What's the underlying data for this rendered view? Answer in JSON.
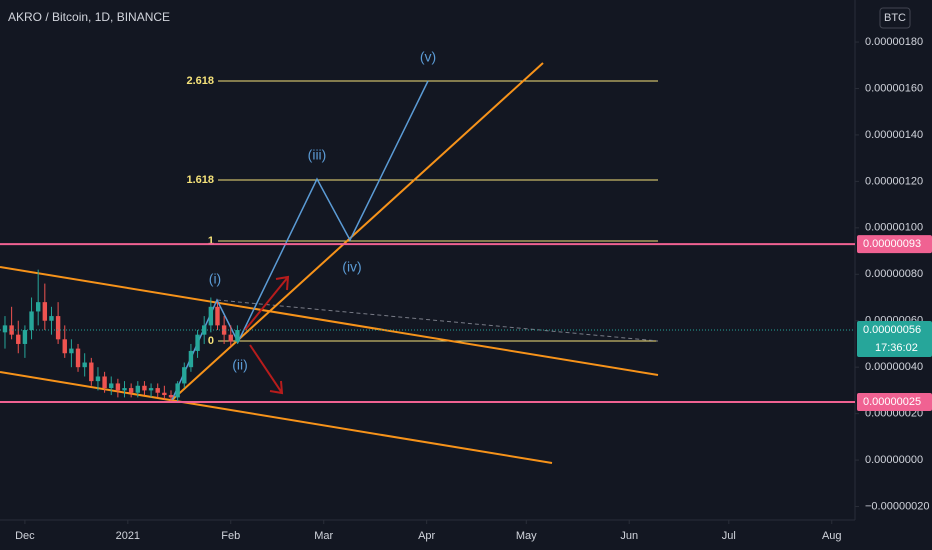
{
  "chart_data": {
    "type": "candlestick",
    "title": "AKRO / Bitcoin, 1D, BINANCE",
    "currency": "BTC",
    "x": [
      -6,
      -4,
      -2,
      0,
      2,
      4,
      6,
      8,
      10,
      12,
      14,
      16,
      18,
      20,
      22,
      24,
      26,
      28,
      30,
      32,
      34,
      36,
      38,
      40,
      42,
      44,
      46,
      48,
      50,
      52,
      54,
      56,
      58,
      60,
      62,
      64
    ],
    "open": [
      5.5e-07,
      5.8e-07,
      5.4e-07,
      5e-07,
      5.6e-07,
      6.4e-07,
      6.8e-07,
      6e-07,
      6.2e-07,
      5.2e-07,
      4.6e-07,
      4.8e-07,
      4e-07,
      4.2e-07,
      3.4e-07,
      3.6e-07,
      3.1e-07,
      3.3e-07,
      3e-07,
      3.1e-07,
      2.9e-07,
      3.2e-07,
      3e-07,
      3.1e-07,
      2.9e-07,
      2.8e-07,
      2.7e-07,
      3.3e-07,
      4e-07,
      4.7e-07,
      5.4e-07,
      5.8e-07,
      6.6e-07,
      5.8e-07,
      5.4e-07,
      5.1e-07
    ],
    "high": [
      6.2e-07,
      6.6e-07,
      6e-07,
      5.8e-07,
      7e-07,
      8.2e-07,
      7.6e-07,
      6.6e-07,
      6.8e-07,
      5.8e-07,
      5.2e-07,
      5e-07,
      4.6e-07,
      4.4e-07,
      4e-07,
      3.8e-07,
      3.6e-07,
      3.5e-07,
      3.4e-07,
      3.3e-07,
      3.4e-07,
      3.4e-07,
      3.3e-07,
      3.3e-07,
      3.2e-07,
      3e-07,
      3.4e-07,
      4.2e-07,
      5e-07,
      5.6e-07,
      6.2e-07,
      7e-07,
      6.8e-07,
      6.2e-07,
      5.8e-07,
      5.8e-07
    ],
    "low": [
      4.8e-07,
      5.2e-07,
      4.6e-07,
      4.4e-07,
      5.2e-07,
      5.8e-07,
      5.6e-07,
      5.4e-07,
      5e-07,
      4.4e-07,
      4e-07,
      3.8e-07,
      3.6e-07,
      3.2e-07,
      3e-07,
      2.9e-07,
      2.8e-07,
      2.7e-07,
      2.7e-07,
      2.7e-07,
      2.7e-07,
      2.8e-07,
      2.7e-07,
      2.7e-07,
      2.6e-07,
      2.5e-07,
      2.5e-07,
      3.1e-07,
      3.8e-07,
      4.4e-07,
      5e-07,
      5.5e-07,
      5.6e-07,
      5e-07,
      4.9e-07,
      5e-07
    ],
    "close": [
      5.8e-07,
      5.4e-07,
      5e-07,
      5.6e-07,
      6.4e-07,
      6.8e-07,
      6e-07,
      6.2e-07,
      5.2e-07,
      4.6e-07,
      4.8e-07,
      4e-07,
      4.2e-07,
      3.4e-07,
      3.6e-07,
      3.1e-07,
      3.3e-07,
      3e-07,
      3.1e-07,
      2.9e-07,
      3.2e-07,
      3e-07,
      3.1e-07,
      2.9e-07,
      2.8e-07,
      2.7e-07,
      3.3e-07,
      4e-07,
      4.7e-07,
      5.4e-07,
      5.8e-07,
      6.6e-07,
      5.8e-07,
      5.4e-07,
      5.1e-07,
      5.6e-07
    ],
    "up_color": "#26a69a",
    "down_color": "#ef5350",
    "xlim": [
      -7.5,
      250
    ],
    "xticks": [
      {
        "value": 0,
        "label": "Dec"
      },
      {
        "value": 31,
        "label": "2021"
      },
      {
        "value": 62,
        "label": "Feb"
      },
      {
        "value": 90,
        "label": "Mar"
      },
      {
        "value": 121,
        "label": "Apr"
      },
      {
        "value": 151,
        "label": "May"
      },
      {
        "value": 182,
        "label": "Jun"
      },
      {
        "value": 212,
        "label": "Jul"
      },
      {
        "value": 243,
        "label": "Aug"
      }
    ],
    "ylim": [
      -2.58e-07,
      1.981e-06
    ],
    "yticks": [
      {
        "value": -2e-07,
        "label": "−0.00000020"
      },
      {
        "value": 0,
        "label": "0.00000000"
      },
      {
        "value": 2e-07,
        "label": "0.00000020"
      },
      {
        "value": 4e-07,
        "label": "0.00000040"
      },
      {
        "value": 6e-07,
        "label": "0.00000060"
      },
      {
        "value": 8e-07,
        "label": "0.00000080"
      },
      {
        "value": 1e-06,
        "label": "0.00000100"
      },
      {
        "value": 1.2e-06,
        "label": "0.00000120"
      },
      {
        "value": 1.4e-06,
        "label": "0.00000140"
      },
      {
        "value": 1.6e-06,
        "label": "0.00000160"
      },
      {
        "value": 1.8e-06,
        "label": "0.00000180"
      }
    ],
    "grid": false,
    "levels": [
      {
        "value": 9.3e-07,
        "label": "0.00000093",
        "color": "#f06292"
      },
      {
        "value": 2.5e-07,
        "label": "0.00000025",
        "color": "#f06292"
      }
    ],
    "last_price": {
      "value": 5.6e-07,
      "label": "0.00000056",
      "countdown": "17:36:02",
      "color": "#26a69a"
    },
    "fib_labels": [
      "2.618",
      "1.618",
      "1",
      "0"
    ],
    "wave_labels": [
      "(i)",
      "(ii)",
      "(iii)",
      "(iv)",
      "(v)"
    ]
  }
}
